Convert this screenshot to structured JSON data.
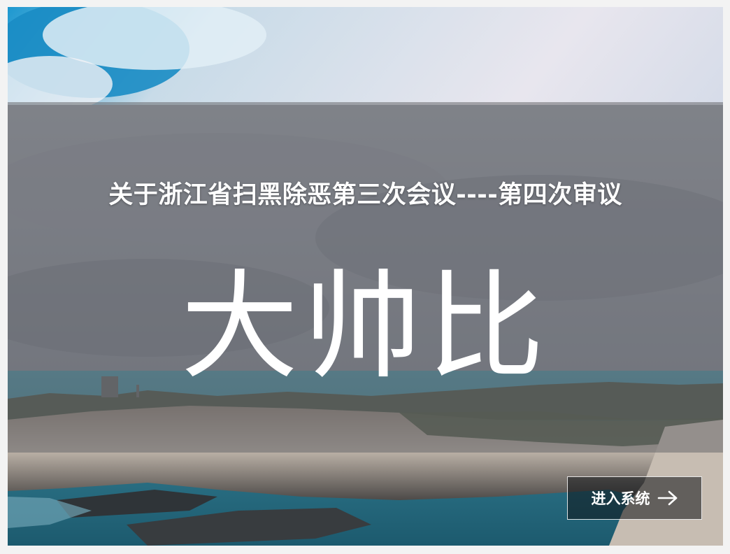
{
  "hero": {
    "subtitle": "关于浙江省扫黑除恶第三次会议----第四次审议",
    "title": "大帅比"
  },
  "enter_button": {
    "label": "进入系统",
    "icon": "arrow-right-icon"
  },
  "colors": {
    "overlay": "#69696e",
    "text": "#ffffff",
    "button_background": "#0f1216",
    "sky": "#1e9bd1",
    "sea": "#2a6f86"
  }
}
